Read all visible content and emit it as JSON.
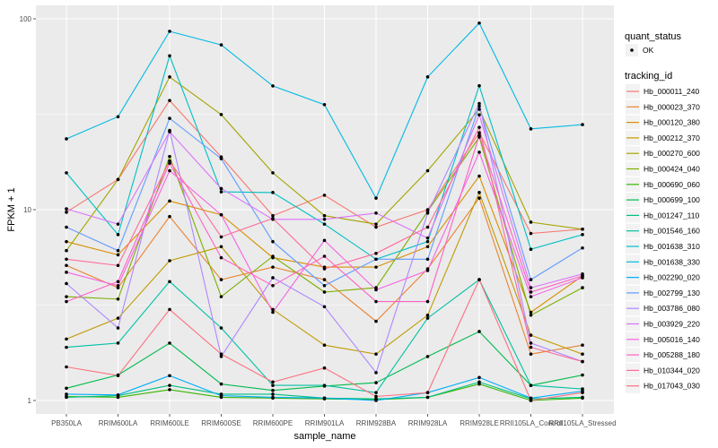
{
  "chart_data": {
    "type": "line",
    "title": "",
    "xlabel": "sample_name",
    "ylabel": "FPKM + 1",
    "yscale": "log10",
    "ylim": [
      0.85,
      110
    ],
    "yticks": [
      1,
      10,
      100
    ],
    "ytick_labels": [
      "1",
      "10",
      "100"
    ],
    "grid": true,
    "legend_position": "right",
    "categories": [
      "PB350LA",
      "RRIM600LA",
      "RRIM600LE",
      "RRIM600SE",
      "RRIM600PE",
      "RRIM901LA",
      "RRIM928BA",
      "RRIM928LA",
      "RRIM928LE",
      "RRII105LA_Control",
      "RRII105LA_Stressed"
    ],
    "category_labels": [
      "PB350LA",
      "RRIM600LA",
      "RRIM600LE",
      "RRIM600SE",
      "RRIM600PE",
      "RRIM901LA",
      "RRIM928BA",
      "RRIM928LA",
      "RRIM928LE",
      "RRII105LA_Control",
      "RRII105LA_Stressed"
    ],
    "shape_legend": {
      "title": "quant_status",
      "entries": [
        "OK"
      ]
    },
    "color_legend_title": "tracking_id",
    "series": [
      {
        "name": "Hb_000011_240",
        "color": "#F8766D",
        "values": [
          9.7,
          14.4,
          37.3,
          18.9,
          9.3,
          11.9,
          8.1,
          10.0,
          25.3,
          7.5,
          7.9
        ]
      },
      {
        "name": "Hb_000023_370",
        "color": "#EA8331",
        "values": [
          5.1,
          3.9,
          9.2,
          4.3,
          5.0,
          4.3,
          2.6,
          4.9,
          11.5,
          1.75,
          1.95
        ]
      },
      {
        "name": "Hb_000120_380",
        "color": "#D89000",
        "values": [
          6.8,
          5.8,
          11.1,
          9.4,
          5.6,
          5.0,
          5.0,
          6.4,
          15.0,
          2.9,
          4.5
        ]
      },
      {
        "name": "Hb_000212_370",
        "color": "#C09B00",
        "values": [
          2.1,
          2.7,
          5.4,
          6.4,
          3.0,
          1.95,
          1.75,
          2.8,
          12.3,
          2.2,
          1.75
        ]
      },
      {
        "name": "Hb_000270_600",
        "color": "#A3A500",
        "values": [
          6.1,
          14.4,
          49.6,
          31.5,
          15.6,
          9.3,
          8.4,
          16.0,
          33.6,
          8.6,
          7.9
        ]
      },
      {
        "name": "Hb_000424_040",
        "color": "#7CAE00",
        "values": [
          3.5,
          3.4,
          19.0,
          3.5,
          5.7,
          3.7,
          3.9,
          9.8,
          24.0,
          2.8,
          3.9
        ]
      },
      {
        "name": "Hb_000690_060",
        "color": "#39B600",
        "values": [
          1.05,
          1.04,
          1.14,
          1.04,
          1.03,
          1.02,
          1.01,
          1.04,
          1.22,
          1.0,
          1.03
        ]
      },
      {
        "name": "Hb_000699_100",
        "color": "#00BB4E",
        "values": [
          1.16,
          1.36,
          2.0,
          1.22,
          1.13,
          1.19,
          1.24,
          1.7,
          2.3,
          1.2,
          1.36
        ]
      },
      {
        "name": "Hb_001247_110",
        "color": "#00BF7D",
        "values": [
          1.04,
          1.06,
          1.2,
          1.08,
          1.08,
          1.03,
          1.02,
          1.04,
          1.25,
          1.02,
          1.04
        ]
      },
      {
        "name": "Hb_001546_160",
        "color": "#00C1A3",
        "values": [
          1.9,
          2.0,
          4.2,
          2.4,
          1.2,
          1.2,
          1.1,
          2.7,
          4.3,
          1.2,
          1.15
        ]
      },
      {
        "name": "Hb_001638_310",
        "color": "#00BFC4",
        "values": [
          15.6,
          7.4,
          64.0,
          12.4,
          12.3,
          8.4,
          5.5,
          6.8,
          44.6,
          6.2,
          7.4
        ]
      },
      {
        "name": "Hb_001638_330",
        "color": "#00B9E3",
        "values": [
          23.5,
          30.7,
          86.0,
          73.0,
          44.5,
          35.5,
          11.5,
          49.6,
          95.0,
          26.5,
          27.9
        ]
      },
      {
        "name": "Hb_002290_020",
        "color": "#00ADFA",
        "values": [
          1.08,
          1.07,
          1.35,
          1.06,
          1.04,
          1.03,
          1.0,
          1.1,
          1.32,
          1.03,
          1.12
        ]
      },
      {
        "name": "Hb_002799_130",
        "color": "#619CFF",
        "values": [
          8.1,
          6.1,
          30.1,
          18.5,
          6.8,
          4.0,
          5.5,
          5.5,
          34.9,
          4.3,
          6.3
        ]
      },
      {
        "name": "Hb_003786_080",
        "color": "#AE87FF",
        "values": [
          4.1,
          2.4,
          26.0,
          1.7,
          4.4,
          3.1,
          1.4,
          9.6,
          36.0,
          2.0,
          1.6
        ]
      },
      {
        "name": "Hb_003929_220",
        "color": "#DB72FB",
        "values": [
          10.1,
          8.4,
          25.6,
          12.9,
          8.9,
          8.9,
          9.6,
          7.1,
          31.4,
          3.9,
          4.6
        ]
      },
      {
        "name": "Hb_005016_140",
        "color": "#F564E3",
        "values": [
          4.7,
          4.0,
          16.0,
          9.4,
          2.9,
          6.9,
          3.8,
          4.8,
          20.0,
          3.5,
          4.4
        ]
      },
      {
        "name": "Hb_005288_180",
        "color": "#FF61C3",
        "values": [
          3.3,
          4.2,
          17.5,
          5.6,
          4.0,
          5.7,
          3.3,
          3.3,
          24.5,
          3.7,
          4.5
        ]
      },
      {
        "name": "Hb_010344_020",
        "color": "#FF699C",
        "values": [
          5.5,
          5.1,
          18.0,
          7.2,
          9.0,
          4.9,
          5.9,
          8.1,
          27.0,
          1.9,
          1.6
        ]
      },
      {
        "name": "Hb_017043_030",
        "color": "#FC717F",
        "values": [
          1.5,
          1.35,
          3.0,
          1.75,
          1.25,
          1.48,
          1.05,
          1.1,
          4.3,
          1.0,
          1.1
        ]
      }
    ]
  }
}
